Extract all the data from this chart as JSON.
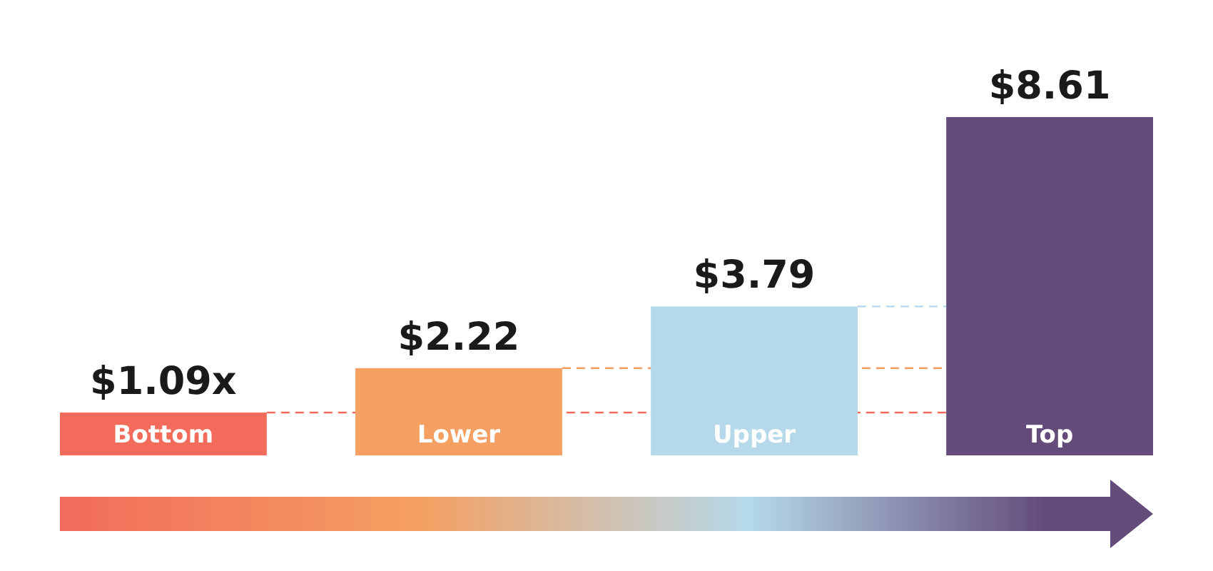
{
  "chart_data": {
    "type": "bar",
    "categories": [
      "Bottom",
      "Lower",
      "Upper",
      "Top"
    ],
    "values": [
      1.09,
      2.22,
      3.79,
      8.61
    ],
    "colors": [
      "#f26b5b",
      "#f5a062",
      "#b5d9ea",
      "#644c7a"
    ],
    "value_labels": [
      "$1.09x",
      "$2.22",
      "$3.79",
      "$8.61"
    ],
    "ref_lines": [
      {
        "axis": "y",
        "value": 1.09,
        "color": "#f26b5b",
        "line_style": "dashed"
      },
      {
        "axis": "y",
        "value": 2.22,
        "color": "#f5a062",
        "line_style": "dashed"
      },
      {
        "axis": "y",
        "value": 3.79,
        "color": "#b5d9ea",
        "line_style": "dashed"
      }
    ]
  }
}
